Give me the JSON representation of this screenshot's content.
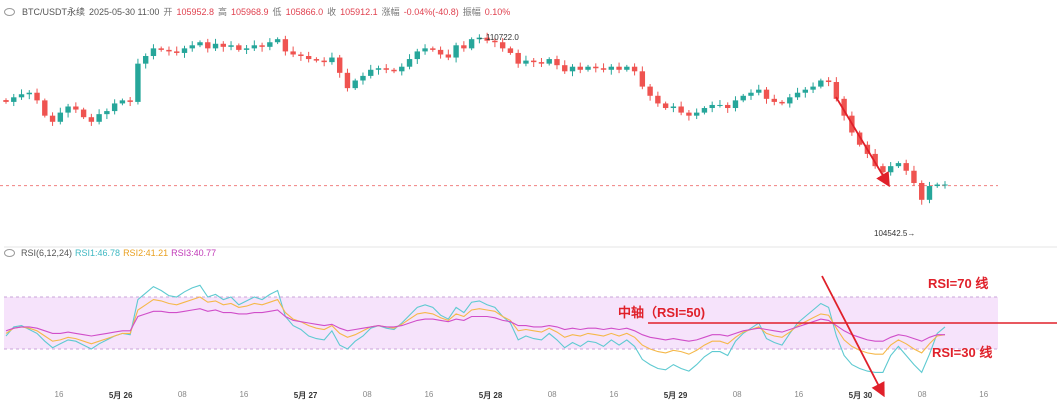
{
  "header": {
    "symbol": "BTC/USDT永续",
    "datetime": "2025-05-30 11:00",
    "open_label": "开",
    "open": "105952.8",
    "high_label": "高",
    "high": "105968.9",
    "low_label": "低",
    "low": "105866.0",
    "close_label": "收",
    "close": "105912.1",
    "change_label": "涨幅",
    "change": "-0.04%(-40.8)",
    "amplitude_label": "振幅",
    "amplitude": "0.10%"
  },
  "rsi_header": {
    "name": "RSI(6,12,24)",
    "rsi1": "RSI1:46.78",
    "rsi2": "RSI2:41.21",
    "rsi3": "RSI3:40.77"
  },
  "price_labels": {
    "high": "110722.0",
    "low": "104542.5"
  },
  "annotations": {
    "rsi70": "RSI=70 线",
    "rsi50": "中轴（RSI=50)",
    "rsi30": "RSI=30 线"
  },
  "x_axis": [
    {
      "label": "16",
      "bold": false
    },
    {
      "label": "5月 26",
      "bold": true
    },
    {
      "label": "08",
      "bold": false
    },
    {
      "label": "16",
      "bold": false
    },
    {
      "label": "5月 27",
      "bold": true
    },
    {
      "label": "08",
      "bold": false
    },
    {
      "label": "16",
      "bold": false
    },
    {
      "label": "5月 28",
      "bold": true
    },
    {
      "label": "08",
      "bold": false
    },
    {
      "label": "16",
      "bold": false
    },
    {
      "label": "5月 29",
      "bold": true
    },
    {
      "label": "08",
      "bold": false
    },
    {
      "label": "16",
      "bold": false
    },
    {
      "label": "5月 30",
      "bold": true
    },
    {
      "label": "08",
      "bold": false
    },
    {
      "label": "16",
      "bold": false
    }
  ],
  "colors": {
    "up": "#26a69a",
    "down": "#ef5350",
    "rsi1": "#5ecad1",
    "rsi2": "#f5b84a",
    "rsi3": "#d04ec9",
    "band": "#f6e3fb",
    "annotation": "#e0202a"
  },
  "chart_data": [
    {
      "type": "candlestick",
      "timeframe": "1h",
      "current_price": 105912.1,
      "high_marker": 110722.0,
      "low_marker": 104542.5,
      "close_series": [
        108650,
        108800,
        108900,
        108950,
        108700,
        108200,
        108000,
        108300,
        108500,
        108400,
        108150,
        108000,
        108250,
        108350,
        108600,
        108700,
        108650,
        109900,
        110150,
        110400,
        110350,
        110300,
        110250,
        110400,
        110500,
        110600,
        110400,
        110550,
        110450,
        110500,
        110350,
        110400,
        110500,
        110450,
        110600,
        110700,
        110300,
        110200,
        110150,
        110050,
        110000,
        109950,
        110100,
        109600,
        109100,
        109350,
        109500,
        109700,
        109750,
        109700,
        109650,
        109800,
        110050,
        110300,
        110400,
        110350,
        110200,
        110100,
        110500,
        110400,
        110700,
        110750,
        110650,
        110600,
        110400,
        110250,
        109900,
        110000,
        109950,
        109900,
        110050,
        109850,
        109650,
        109800,
        109700,
        109800,
        109750,
        109700,
        109800,
        109700,
        109800,
        109650,
        109150,
        108850,
        108600,
        108450,
        108500,
        108300,
        108200,
        108300,
        108450,
        108550,
        108550,
        108450,
        108700,
        108850,
        108950,
        109050,
        108750,
        108650,
        108600,
        108800,
        108950,
        109050,
        109150,
        109350,
        109300,
        108750,
        108200,
        107650,
        107250,
        106950,
        106550,
        106350,
        106550,
        106650,
        106400,
        106000,
        105450,
        105900,
        105950,
        105950
      ]
    },
    {
      "type": "line",
      "name": "RSI(6,12,24)",
      "ylim": [
        0,
        100
      ],
      "reference_lines": [
        70,
        50,
        30
      ],
      "series": [
        {
          "name": "RSI1",
          "values": [
            40,
            47,
            48,
            45,
            42,
            36,
            31,
            34,
            37,
            36,
            33,
            30,
            34,
            37,
            40,
            42,
            41,
            68,
            73,
            78,
            75,
            71,
            70,
            74,
            77,
            79,
            70,
            72,
            68,
            70,
            64,
            67,
            70,
            68,
            72,
            75,
            55,
            48,
            45,
            40,
            38,
            37,
            44,
            33,
            30,
            36,
            40,
            46,
            48,
            46,
            45,
            50,
            56,
            62,
            64,
            62,
            56,
            53,
            62,
            58,
            66,
            67,
            64,
            62,
            55,
            50,
            37,
            40,
            38,
            37,
            42,
            37,
            31,
            35,
            32,
            36,
            35,
            32,
            37,
            33,
            37,
            32,
            22,
            18,
            15,
            14,
            18,
            15,
            13,
            18,
            24,
            28,
            28,
            25,
            36,
            42,
            46,
            50,
            38,
            35,
            33,
            42,
            50,
            55,
            60,
            65,
            62,
            40,
            25,
            18,
            15,
            13,
            12,
            12,
            25,
            32,
            25,
            18,
            12,
            26,
            42,
            47
          ]
        },
        {
          "name": "RSI2",
          "values": [
            42,
            46,
            47,
            46,
            44,
            40,
            36,
            37,
            39,
            38,
            36,
            34,
            36,
            38,
            40,
            42,
            42,
            60,
            64,
            68,
            67,
            65,
            64,
            66,
            68,
            70,
            66,
            67,
            64,
            65,
            62,
            63,
            65,
            64,
            66,
            68,
            58,
            53,
            51,
            48,
            46,
            45,
            48,
            42,
            39,
            41,
            44,
            47,
            48,
            47,
            46,
            49,
            53,
            57,
            58,
            57,
            54,
            52,
            57,
            55,
            60,
            61,
            60,
            59,
            55,
            52,
            44,
            45,
            44,
            43,
            46,
            43,
            39,
            41,
            40,
            42,
            41,
            40,
            42,
            40,
            42,
            39,
            33,
            30,
            28,
            27,
            29,
            28,
            26,
            29,
            33,
            36,
            36,
            34,
            39,
            43,
            45,
            47,
            42,
            40,
            39,
            43,
            48,
            51,
            54,
            57,
            56,
            46,
            37,
            32,
            29,
            27,
            26,
            26,
            33,
            37,
            34,
            30,
            27,
            34,
            40,
            41
          ]
        },
        {
          "name": "RSI3",
          "values": [
            44,
            46,
            47,
            47,
            46,
            44,
            42,
            42,
            43,
            42,
            41,
            40,
            41,
            42,
            43,
            44,
            44,
            55,
            57,
            59,
            59,
            58,
            58,
            59,
            60,
            61,
            59,
            60,
            58,
            58,
            57,
            57,
            58,
            58,
            59,
            60,
            55,
            52,
            51,
            50,
            49,
            48,
            49,
            46,
            44,
            45,
            46,
            47,
            48,
            47,
            47,
            48,
            50,
            52,
            53,
            53,
            52,
            51,
            53,
            52,
            55,
            55,
            55,
            54,
            52,
            51,
            48,
            48,
            47,
            47,
            48,
            47,
            45,
            46,
            45,
            46,
            46,
            45,
            46,
            45,
            46,
            44,
            41,
            39,
            38,
            37,
            38,
            37,
            36,
            37,
            39,
            41,
            41,
            40,
            42,
            44,
            45,
            46,
            45,
            44,
            43,
            45,
            47,
            49,
            51,
            53,
            52,
            48,
            44,
            41,
            39,
            37,
            36,
            36,
            39,
            41,
            40,
            38,
            36,
            39,
            41,
            41
          ]
        }
      ]
    }
  ]
}
